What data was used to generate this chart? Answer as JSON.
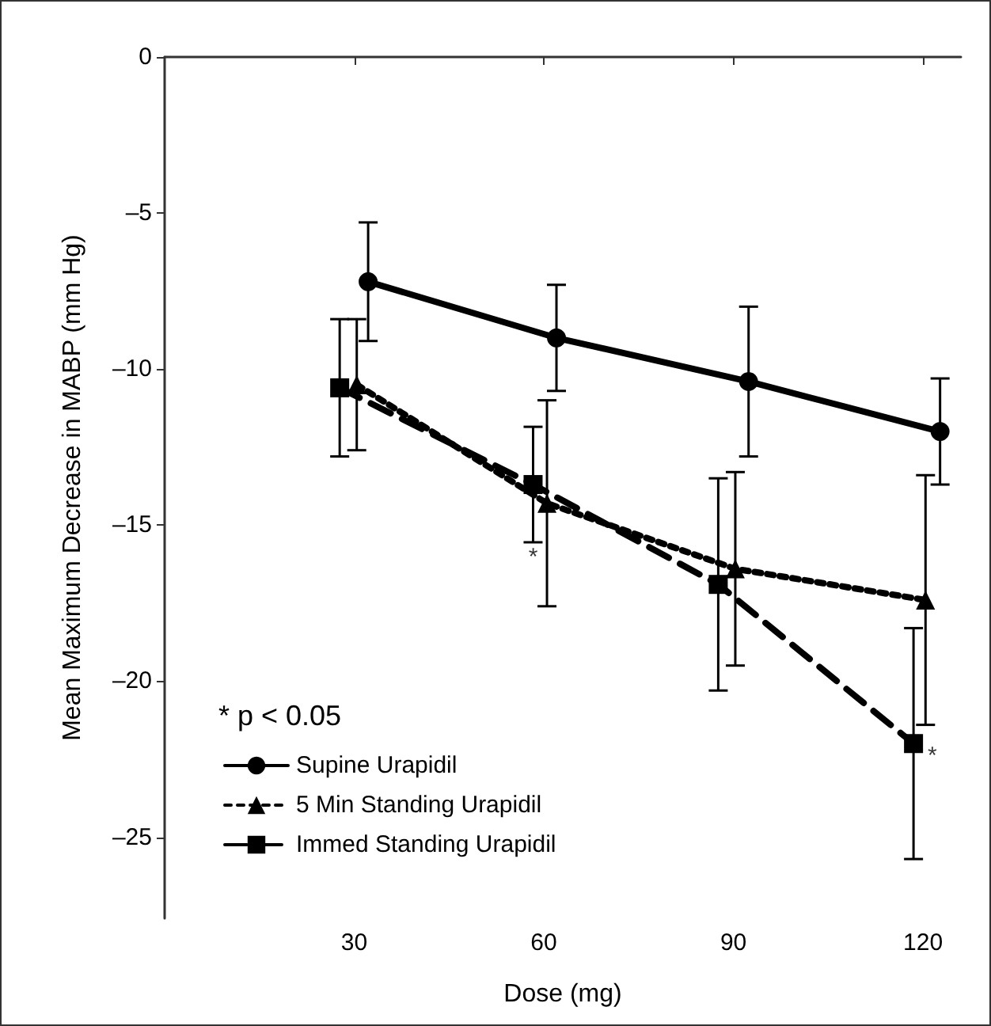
{
  "chart_data": {
    "type": "line",
    "xlabel": "Dose (mg)",
    "ylabel": "Mean Maximum Decrease in MABP (mm Hg)",
    "xlim": [
      0,
      126
    ],
    "xticks": [
      30,
      60,
      90,
      120
    ],
    "ylim": [
      -27.6,
      0
    ],
    "yticks": [
      0,
      {
        "value": -5,
        "label": "–5"
      },
      {
        "value": -10,
        "label": "–10"
      },
      {
        "value": -15,
        "label": "–15"
      },
      {
        "value": -20,
        "label": "–20"
      },
      {
        "value": -25,
        "label": "–25"
      }
    ],
    "grid": false,
    "legend": "left",
    "annotations": [
      "* p < 0.05",
      {
        "text": "*",
        "x": 58.3,
        "y": -15.55
      },
      {
        "text": "*",
        "x": 118.5,
        "y": -22.0
      }
    ],
    "series": [
      {
        "name": "Supine Urapidil",
        "color": "#000000",
        "marker": "circle",
        "line_style": "solid",
        "x": [
          32.2,
          62,
          92.4,
          122.7
        ],
        "values": [
          -7.2,
          -9.0,
          -10.4,
          -12.0
        ],
        "errors": [
          1.9,
          1.7,
          2.4,
          1.7
        ]
      },
      {
        "name": "5 Min Standing Urapidil",
        "color": "#000000",
        "marker": "triangle",
        "line_style": "dotted",
        "x": [
          30.4,
          60.5,
          90.3,
          120.4
        ],
        "values": [
          -10.5,
          -14.3,
          -16.4,
          -17.4
        ],
        "errors": [
          2.1,
          3.3,
          3.1,
          4
        ]
      },
      {
        "name": "Immed Standing Urapidil",
        "color": "#000000",
        "marker": "square",
        "line_style": "dashed",
        "x": [
          27.7,
          58.3,
          87.6,
          118.5
        ],
        "values": [
          -10.6,
          -13.7,
          -16.9,
          -22.0
        ],
        "errors": [
          2.2,
          1.85,
          3.4,
          3.7
        ]
      }
    ]
  }
}
